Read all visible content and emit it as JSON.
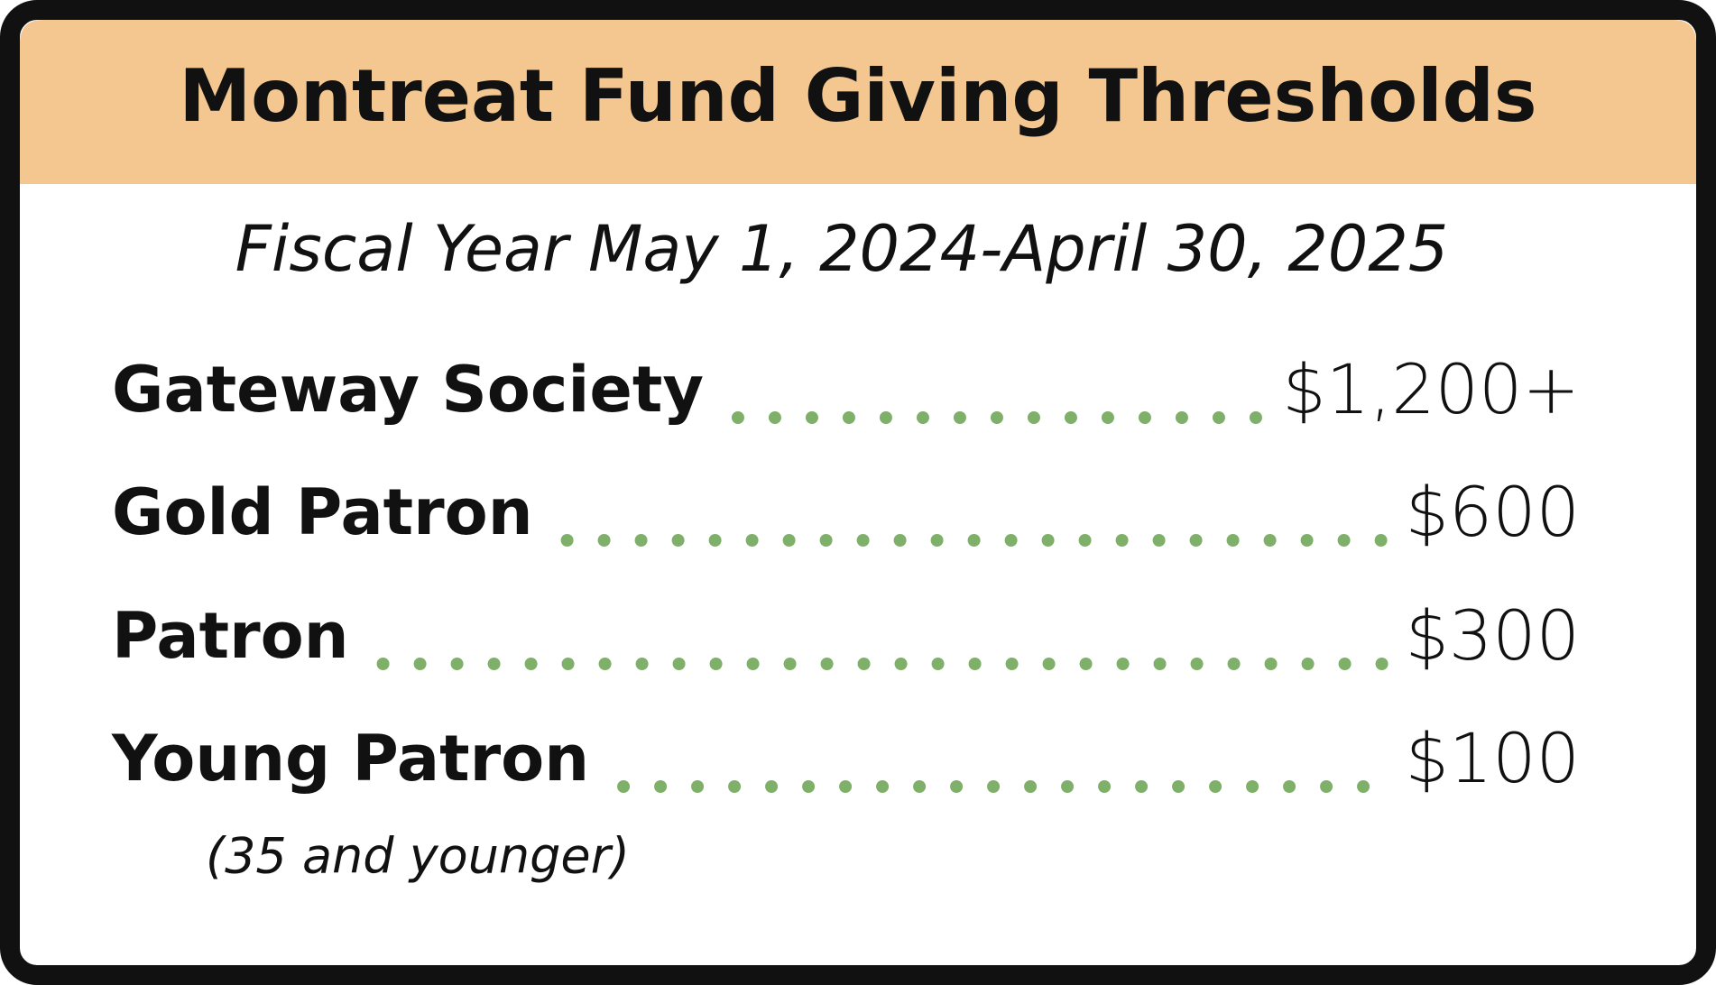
{
  "header": {
    "title": "Montreat Fund Giving Thresholds"
  },
  "subtitle": "Fiscal Year May 1, 2024-April 30, 2025",
  "tiers": [
    {
      "name": "Gateway Society",
      "amount": "$1,200+"
    },
    {
      "name": "Gold Patron",
      "amount": "$600"
    },
    {
      "name": "Patron",
      "amount": "$300"
    },
    {
      "name": "Young Patron",
      "amount": "$100"
    }
  ],
  "note": "(35 and younger)"
}
